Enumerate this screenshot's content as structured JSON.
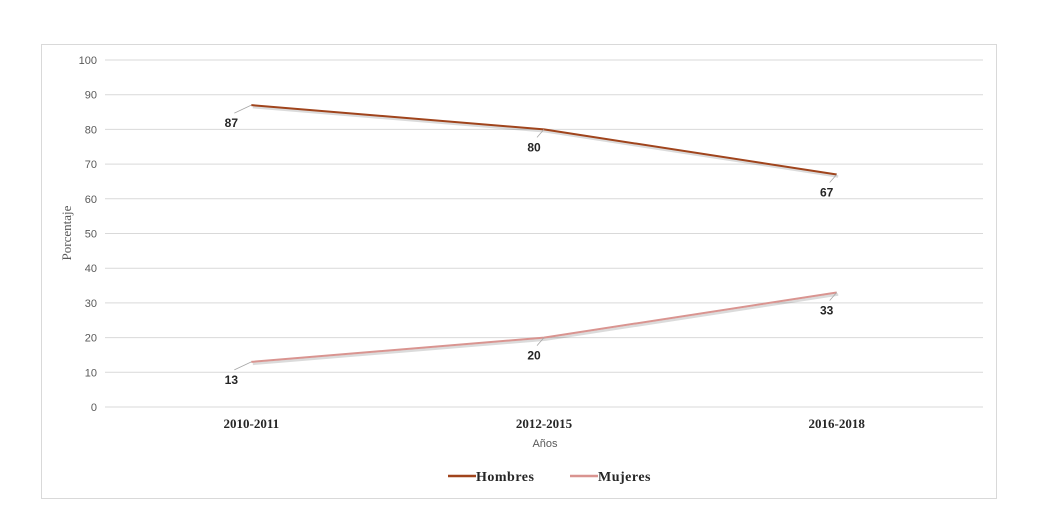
{
  "chart_data": {
    "type": "line",
    "categories": [
      "2010-2011",
      "2012-2015",
      "2016-2018"
    ],
    "series": [
      {
        "name": "Hombres",
        "values": [
          87,
          80,
          67
        ],
        "color": "#a0441c"
      },
      {
        "name": "Mujeres",
        "values": [
          13,
          20,
          33
        ],
        "color": "#d99490"
      }
    ],
    "xlabel": "Años",
    "ylabel": "Porcentaje",
    "ylim": [
      0,
      100
    ],
    "yticks": [
      0,
      10,
      20,
      30,
      40,
      50,
      60,
      70,
      80,
      90,
      100
    ],
    "grid": true,
    "legend": "bottom-center"
  }
}
